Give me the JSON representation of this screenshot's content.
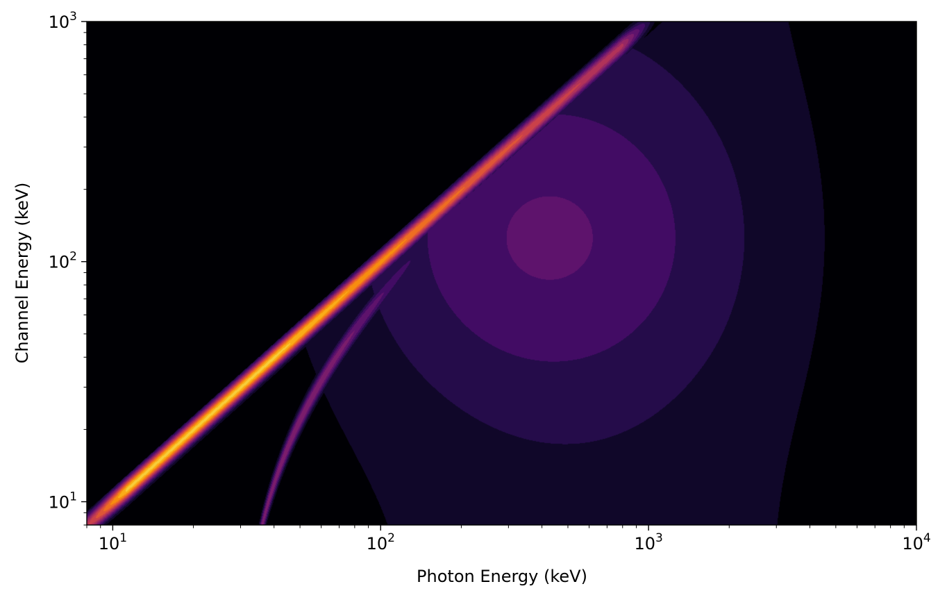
{
  "chart_data": {
    "type": "heatmap",
    "title": "",
    "xlabel": "Photon Energy (keV)",
    "ylabel": "Channel Energy (keV)",
    "xscale": "log",
    "yscale": "log",
    "xlim": [
      8,
      10000
    ],
    "ylim": [
      8,
      1000
    ],
    "x_tick_labels": [
      {
        "base": "10",
        "exp": "1",
        "value": 10
      },
      {
        "base": "10",
        "exp": "2",
        "value": 100
      },
      {
        "base": "10",
        "exp": "3",
        "value": 1000
      },
      {
        "base": "10",
        "exp": "4",
        "value": 10000
      }
    ],
    "y_tick_labels": [
      {
        "base": "10",
        "exp": "1",
        "value": 10
      },
      {
        "base": "10",
        "exp": "2",
        "value": 100
      },
      {
        "base": "10",
        "exp": "3",
        "value": 1000
      }
    ],
    "colormap": "inferno",
    "grid": false,
    "legend": "none",
    "features": [
      {
        "name": "photopeak",
        "description": "bright diagonal ridge where channel energy equals photon energy",
        "x_range": [
          8,
          900
        ],
        "peak_intensity": 0.95
      },
      {
        "name": "escape peak",
        "description": "secondary ridge offset by ~30 keV",
        "x_range": [
          35,
          120
        ],
        "peak_intensity": 0.42
      },
      {
        "name": "compton continuum",
        "description": "broad diffuse emission below the diagonal",
        "x_range": [
          100,
          10000
        ],
        "peak_intensity": 0.2
      }
    ]
  },
  "colors": {
    "cmap_stops": [
      "#000004",
      "#1b0c41",
      "#4a0c6b",
      "#781c6d",
      "#a52c60",
      "#cf4446",
      "#ed6925",
      "#fb9b06",
      "#f7d13d",
      "#fcffa4"
    ]
  }
}
